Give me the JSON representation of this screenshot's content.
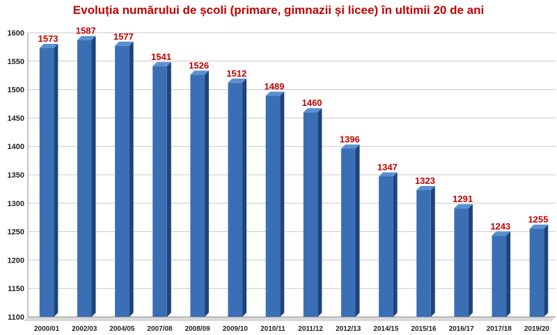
{
  "chart_data": {
    "type": "bar",
    "title": "Evoluția numărului de școli (primare, gimnazii și licee) în ultimii 20 de ani",
    "xlabel": "",
    "ylabel": "",
    "categories": [
      "2000/01",
      "2002/03",
      "2004/05",
      "2007/08",
      "2008/09",
      "2009/10",
      "2010/11",
      "2011/12",
      "2012/13",
      "2014/15",
      "2015/16",
      "2016/17",
      "2017/18",
      "2019/20"
    ],
    "values": [
      1573,
      1587,
      1577,
      1541,
      1526,
      1512,
      1489,
      1460,
      1396,
      1347,
      1323,
      1291,
      1243,
      1255
    ],
    "ylim": [
      1100,
      1600
    ],
    "yticks": [
      1100,
      1150,
      1200,
      1250,
      1300,
      1350,
      1400,
      1450,
      1500,
      1550,
      1600
    ],
    "grid": true,
    "legend": "none",
    "bar_style": "3d",
    "colors": {
      "bar_front": "#3a6fb5",
      "bar_side": "#1f4479",
      "bar_top": "#5b8fd0",
      "data_label": "#c00000",
      "title": "#c00000",
      "grid": "#c8c8c8"
    }
  }
}
